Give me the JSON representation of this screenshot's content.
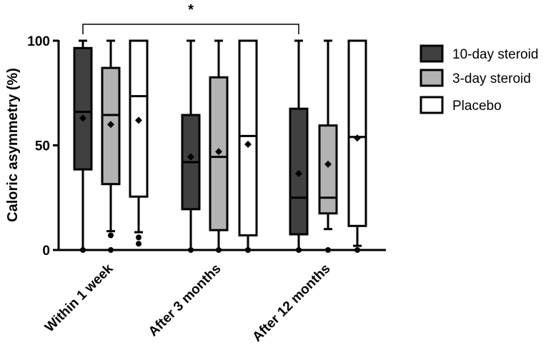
{
  "chart_data": {
    "type": "box",
    "ylabel": "Caloric asymmetry (%)",
    "ylim": [
      0,
      100
    ],
    "yticks": [
      "0",
      "50",
      "100"
    ],
    "categories": [
      "Within 1 week",
      "After 3 months",
      "After 12 months"
    ],
    "legend_position": "right",
    "series": [
      {
        "name": "10-day steroid",
        "color": "#404040",
        "boxes": [
          {
            "min": 0,
            "q1": 38.5,
            "median": 66,
            "q3": 96.5,
            "max": 100,
            "mean": 63,
            "outliers": []
          },
          {
            "min": 0,
            "q1": 19.5,
            "median": 42,
            "q3": 64.5,
            "max": 100,
            "mean": 44.5,
            "outliers": []
          },
          {
            "min": 0,
            "q1": 7.5,
            "median": 25,
            "q3": 67.5,
            "max": 100,
            "mean": 36.5,
            "outliers": []
          }
        ]
      },
      {
        "name": "3-day steroid",
        "color": "#b3b3b3",
        "boxes": [
          {
            "min": 9,
            "q1": 31.5,
            "median": 64.5,
            "q3": 87,
            "max": 100,
            "mean": 60,
            "outliers": [
              7,
              0
            ]
          },
          {
            "min": 0,
            "q1": 9.5,
            "median": 44.5,
            "q3": 82.5,
            "max": 100,
            "mean": 47,
            "outliers": []
          },
          {
            "min": 10,
            "q1": 17.5,
            "median": 25,
            "q3": 59.5,
            "max": 100,
            "mean": 41,
            "outliers": [
              0
            ]
          }
        ]
      },
      {
        "name": "Placebo",
        "color": "#ffffff",
        "boxes": [
          {
            "min": 8.5,
            "q1": 25.5,
            "median": 73.5,
            "q3": 100,
            "max": 100,
            "mean": 62,
            "outliers": [
              6,
              3
            ]
          },
          {
            "min": 0,
            "q1": 7,
            "median": 54.5,
            "q3": 100,
            "max": 100,
            "mean": 50.5,
            "outliers": [
              0
            ]
          },
          {
            "min": 2,
            "q1": 11.5,
            "median": 54,
            "q3": 100,
            "max": 100,
            "mean": 53.5,
            "outliers": [
              0
            ]
          }
        ]
      }
    ],
    "annotations": [
      {
        "text": "*",
        "from": "10-day steroid, Within 1 week",
        "to": "10-day steroid, After 12 months"
      }
    ]
  }
}
